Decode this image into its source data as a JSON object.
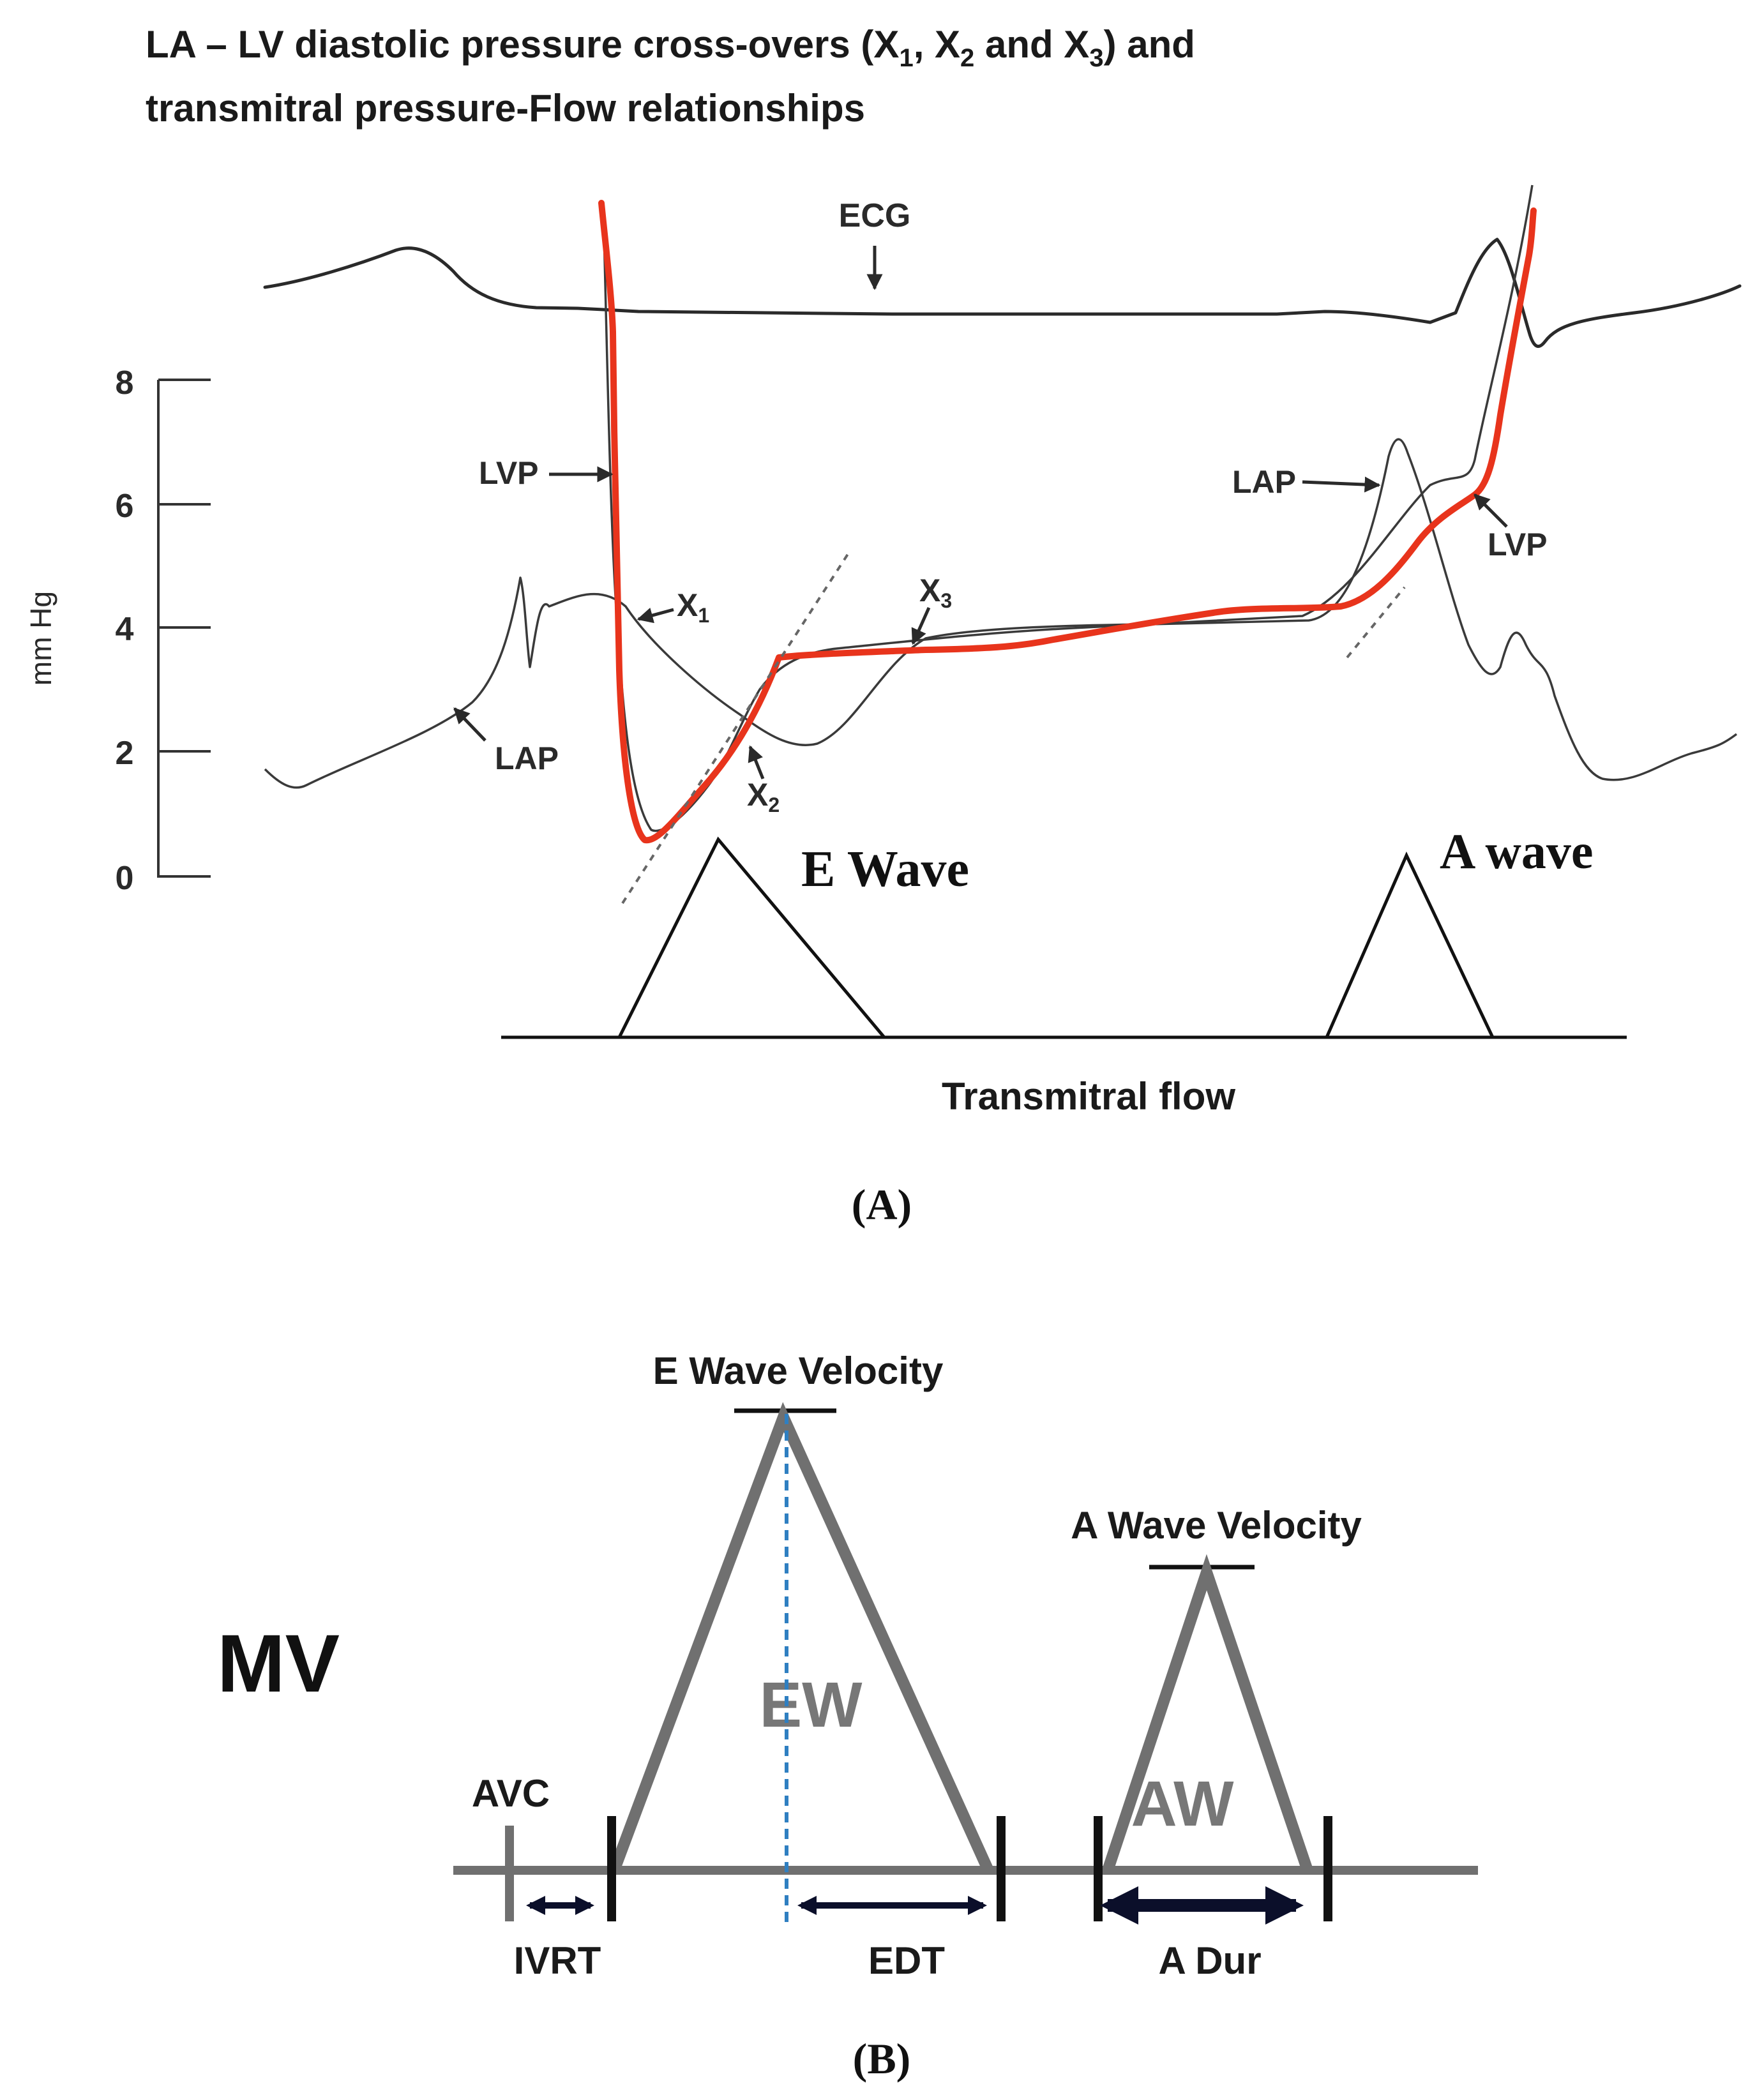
{
  "panel_a": {
    "title_line1": "LA – LV diastolic pressure cross-overs (X",
    "title_sub1": "1",
    "title_mid1": ", X",
    "title_sub2": "2",
    "title_mid2": " and X",
    "title_sub3": "3",
    "title_end": ") and",
    "title_line2": "transmitral pressure-Flow relationships",
    "y_axis_label": "mm Hg",
    "y_ticks": [
      "8",
      "6",
      "4",
      "2",
      "0"
    ],
    "labels": {
      "ecg": "ECG",
      "lvp_left": "LVP",
      "lap_left": "LAP",
      "x1": "X",
      "x1_sub": "1",
      "x2": "X",
      "x2_sub": "2",
      "x3": "X",
      "x3_sub": "3",
      "lap_right": "LAP",
      "lvp_right": "LVP",
      "e_wave": "E Wave",
      "a_wave": "A wave",
      "transmitral_flow": "Transmitral flow"
    },
    "panel_label": "(A)",
    "colors": {
      "overlay_lvp": "#e8341c",
      "trace": "#2a2a2a"
    }
  },
  "panel_b": {
    "mv_label": "MV",
    "e_wave_velocity": "E Wave Velocity",
    "a_wave_velocity": "A Wave Velocity",
    "ew_label": "EW",
    "aw_label": "AW",
    "avc_label": "AVC",
    "ivrt_label": "IVRT",
    "edt_label": "EDT",
    "adur_label": "A Dur",
    "panel_label": "(B)",
    "colors": {
      "triangle": "#707070",
      "dashed": "#2f7fc1",
      "arrow": "#0b0f2a"
    }
  }
}
